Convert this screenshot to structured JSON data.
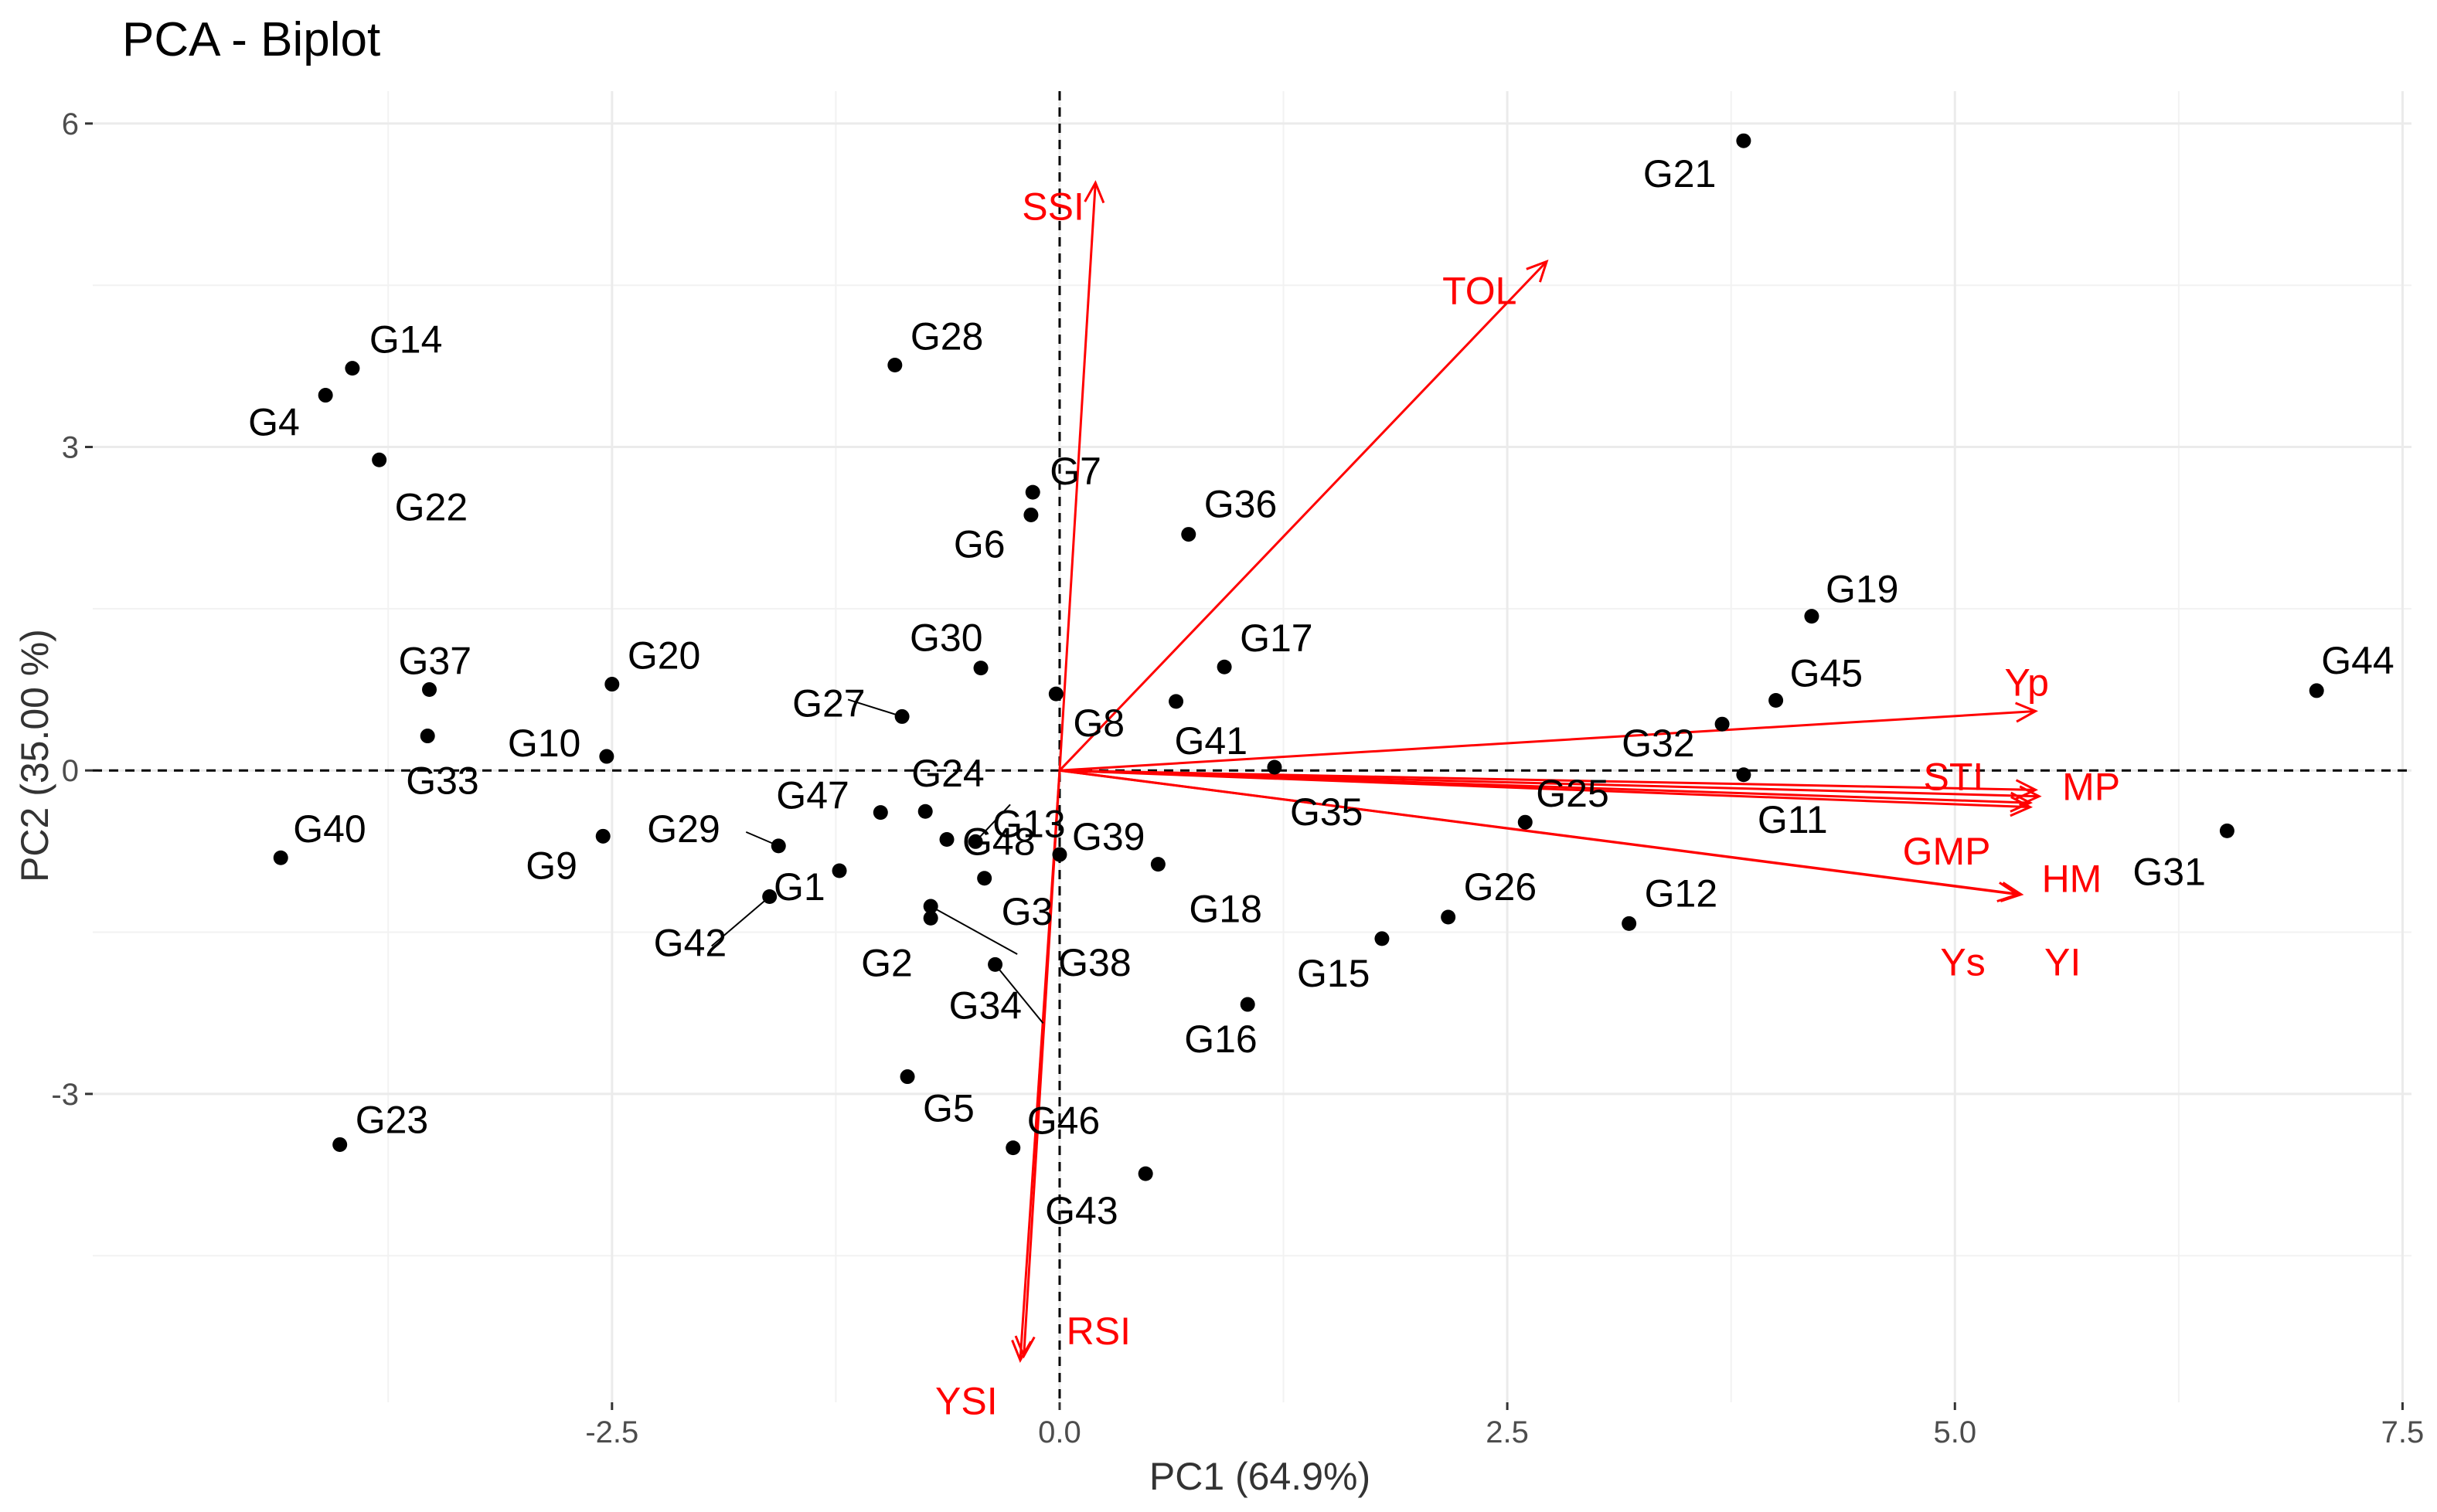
{
  "chart_data": {
    "type": "scatter",
    "title": "PCA - Biplot",
    "xlabel": "PC1 (64.9%)",
    "ylabel": "PC2 (35.00 %)",
    "xlim": [
      -5.4,
      7.55
    ],
    "ylim": [
      -5.86,
      6.3
    ],
    "xticks": [
      {
        "value": -2.5,
        "label": "-2.5"
      },
      {
        "value": 0,
        "label": "0.0"
      },
      {
        "value": 2.5,
        "label": "2.5"
      },
      {
        "value": 5,
        "label": "5.0"
      },
      {
        "value": 7.5,
        "label": "7.5"
      }
    ],
    "yticks": [
      {
        "value": -3,
        "label": "-3"
      },
      {
        "value": 0,
        "label": "0"
      },
      {
        "value": 3,
        "label": "3"
      },
      {
        "value": 6,
        "label": "6"
      }
    ],
    "grid": true,
    "point_color": "#000000",
    "vector_color": "#ff0000",
    "points": [
      {
        "label": "G21",
        "x": 3.82,
        "y": 5.84
      },
      {
        "label": "G14",
        "x": -3.95,
        "y": 3.73
      },
      {
        "label": "G4",
        "x": -4.1,
        "y": 3.48
      },
      {
        "label": "G22",
        "x": -3.8,
        "y": 2.88
      },
      {
        "label": "G28",
        "x": -0.92,
        "y": 3.76
      },
      {
        "label": "G7",
        "x": -0.15,
        "y": 2.58
      },
      {
        "label": "G6",
        "x": -0.16,
        "y": 2.37
      },
      {
        "label": "G36",
        "x": 0.72,
        "y": 2.19
      },
      {
        "label": "G19",
        "x": 4.2,
        "y": 1.43
      },
      {
        "label": "G17",
        "x": 0.92,
        "y": 0.96
      },
      {
        "label": "G45",
        "x": 4.0,
        "y": 0.65
      },
      {
        "label": "G44",
        "x": 7.02,
        "y": 0.74
      },
      {
        "label": "G37",
        "x": -3.52,
        "y": 0.75
      },
      {
        "label": "G20",
        "x": -2.5,
        "y": 0.8
      },
      {
        "label": "G30",
        "x": -0.44,
        "y": 0.95
      },
      {
        "label": "G27",
        "x": -0.88,
        "y": 0.5
      },
      {
        "label": "G8",
        "x": -0.02,
        "y": 0.71
      },
      {
        "label": "G41",
        "x": 0.65,
        "y": 0.64
      },
      {
        "label": "G32",
        "x": 3.7,
        "y": 0.43
      },
      {
        "label": "G10",
        "x": -2.53,
        "y": 0.13
      },
      {
        "label": "G33",
        "x": -3.53,
        "y": 0.32
      },
      {
        "label": "G24",
        "x": -0.75,
        "y": -0.38
      },
      {
        "label": "G47",
        "x": -1.0,
        "y": -0.39
      },
      {
        "label": "G13",
        "x": -0.47,
        "y": -0.66
      },
      {
        "label": "G11",
        "x": 3.82,
        "y": -0.04
      },
      {
        "label": "G25",
        "x": 2.6,
        "y": -0.48
      },
      {
        "label": "G35",
        "x": 1.2,
        "y": 0.03
      },
      {
        "label": "G31",
        "x": 6.52,
        "y": -0.56
      },
      {
        "label": "G40",
        "x": -4.35,
        "y": -0.81
      },
      {
        "label": "G9",
        "x": -2.55,
        "y": -0.61
      },
      {
        "label": "G29",
        "x": -1.57,
        "y": -0.7
      },
      {
        "label": "G1",
        "x": -1.23,
        "y": -0.93
      },
      {
        "label": "G42",
        "x": -1.62,
        "y": -1.17
      },
      {
        "label": "G48",
        "x": -0.63,
        "y": -0.64
      },
      {
        "label": "G39",
        "x": 0.0,
        "y": -0.78
      },
      {
        "label": "G3",
        "x": -0.42,
        "y": -1.0
      },
      {
        "label": "G18",
        "x": 0.55,
        "y": -0.87
      },
      {
        "label": "G2",
        "x": -0.72,
        "y": -1.37
      },
      {
        "label": "G34",
        "x": -0.36,
        "y": -1.8
      },
      {
        "label": "G38",
        "x": -0.72,
        "y": -1.26
      },
      {
        "label": "G26",
        "x": 2.17,
        "y": -1.36
      },
      {
        "label": "G12",
        "x": 3.18,
        "y": -1.42
      },
      {
        "label": "G15",
        "x": 1.8,
        "y": -1.56
      },
      {
        "label": "G16",
        "x": 1.05,
        "y": -2.17
      },
      {
        "label": "G23",
        "x": -4.02,
        "y": -3.47
      },
      {
        "label": "G5",
        "x": -0.85,
        "y": -2.84
      },
      {
        "label": "G46",
        "x": -0.26,
        "y": -3.5
      },
      {
        "label": "G43",
        "x": 0.48,
        "y": -3.74
      }
    ],
    "vectors": [
      {
        "label": "SSI",
        "x": 0.2,
        "y": 5.45
      },
      {
        "label": "TOL",
        "x": 2.72,
        "y": 4.72
      },
      {
        "label": "Yp",
        "x": 5.45,
        "y": 0.55
      },
      {
        "label": "STI",
        "x": 5.45,
        "y": -0.18
      },
      {
        "label": "MP",
        "x": 5.47,
        "y": -0.24
      },
      {
        "label": "GMP",
        "x": 5.42,
        "y": -0.3
      },
      {
        "label": "HM",
        "x": 5.42,
        "y": -0.34
      },
      {
        "label": "Ys",
        "x": 5.35,
        "y": -1.15
      },
      {
        "label": "YI",
        "x": 5.37,
        "y": -1.15
      },
      {
        "label": "RSI",
        "x": -0.2,
        "y": -5.43
      },
      {
        "label": "YSI",
        "x": -0.22,
        "y": -5.47
      }
    ]
  }
}
